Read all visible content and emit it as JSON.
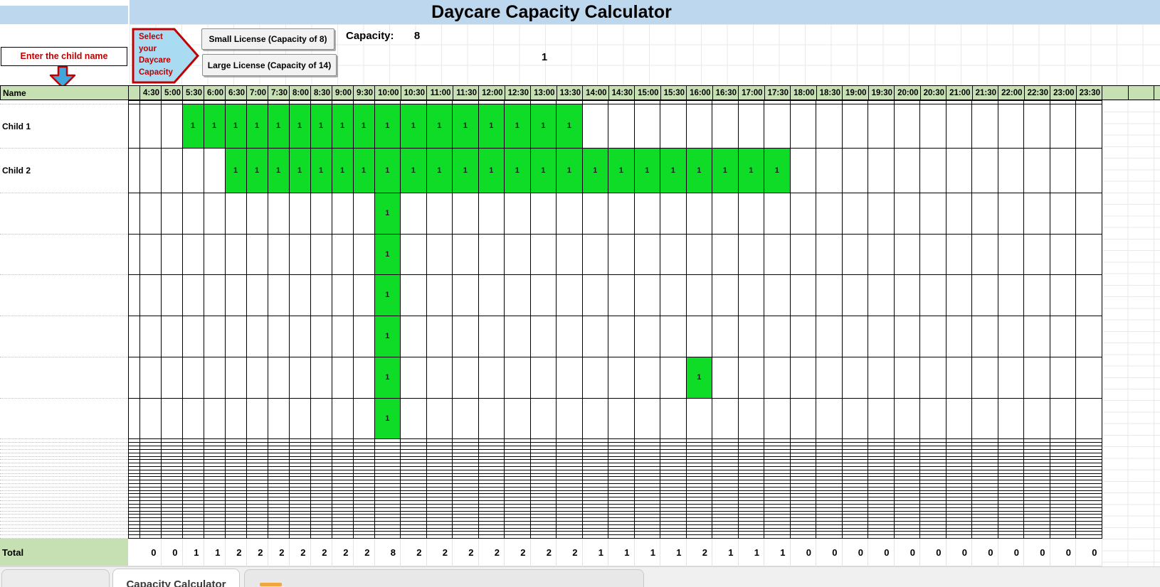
{
  "window": {
    "title": "Daycare Capacity Calculator"
  },
  "callouts": {
    "enter_child_name": "Enter the child name",
    "select_capacity_lines": [
      "Select",
      "your",
      "Daycare",
      "Capacity"
    ]
  },
  "buttons": [
    {
      "label": "Small License (Capacity of 8)"
    },
    {
      "label": "Large License (Capacity of 14)"
    }
  ],
  "capacity": {
    "label": "Capacity:",
    "value": "8",
    "option_value": "1"
  },
  "schedule": {
    "name_header": "Name",
    "time_columns": [
      "4:30",
      "5:00",
      "5:30",
      "6:00",
      "6:30",
      "7:00",
      "7:30",
      "8:00",
      "8:30",
      "9:00",
      "9:30",
      "10:00",
      "10:30",
      "11:00",
      "11:30",
      "12:00",
      "12:30",
      "13:00",
      "13:30",
      "14:00",
      "14:30",
      "15:00",
      "15:30",
      "16:00",
      "16:30",
      "17:00",
      "17:30",
      "18:00",
      "18:30",
      "19:00",
      "19:30",
      "20:00",
      "20:30",
      "21:00",
      "21:30",
      "22:00",
      "22:30",
      "23:00",
      "23:30"
    ],
    "narrow_column_count": 11,
    "row_count": 38,
    "cell_mark": "1",
    "rows": [
      {
        "index": 1,
        "name": "Child 1",
        "booked_from": "5:30",
        "booked_to": "13:30"
      },
      {
        "index": 2,
        "name": "Child 2",
        "booked_from": "6:30",
        "booked_to": "17:30"
      },
      {
        "index": 3,
        "booked_times": [
          "10:00"
        ]
      },
      {
        "index": 4,
        "booked_times": [
          "10:00"
        ]
      },
      {
        "index": 5,
        "booked_times": [
          "10:00"
        ]
      },
      {
        "index": 6,
        "booked_times": [
          "10:00"
        ]
      },
      {
        "index": 7,
        "booked_times": [
          "10:00",
          "16:00"
        ]
      },
      {
        "index": 8,
        "booked_times": [
          "10:00"
        ]
      }
    ],
    "total_label": "Total",
    "totals": [
      0,
      0,
      1,
      1,
      2,
      2,
      2,
      2,
      2,
      2,
      2,
      8,
      2,
      2,
      2,
      2,
      2,
      2,
      2,
      1,
      1,
      1,
      1,
      2,
      1,
      1,
      1,
      0,
      0,
      0,
      0,
      0,
      0,
      0,
      0,
      0,
      0,
      0,
      0
    ]
  },
  "sheet_tabs": {
    "active": "Capacity Calculator"
  },
  "colors": {
    "title_bg": "#bdd7ee",
    "header_bg": "#c6e0b4",
    "booked_bg": "#0edc26",
    "accent_red": "#c00000",
    "arrow_blue": "#3fa7dc",
    "callout_blue": "#a9dbf2",
    "tab_orange": "#f0a63c"
  }
}
